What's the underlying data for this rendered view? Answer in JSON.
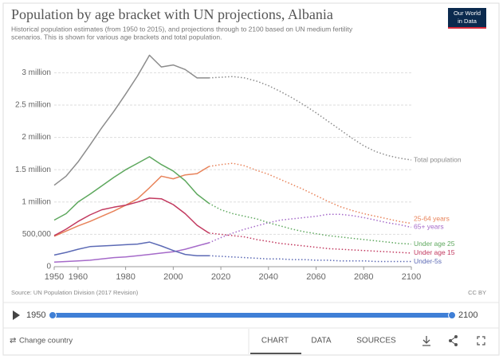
{
  "chart_data": {
    "type": "line",
    "title": "Population by age bracket with UN projections, Albania",
    "subtitle": [
      "Historical population estimates (from 1950 to 2015), and projections through to 2100 based on UN medium fertility",
      "scenarios. This is shown for various age brackets and total population."
    ],
    "logo": [
      "Our World",
      "in Data"
    ],
    "source": "Source: UN Population Division (2017 Revision)",
    "license": "CC BY",
    "x": [
      1950,
      1955,
      1960,
      1965,
      1970,
      1975,
      1980,
      1985,
      1990,
      1995,
      2000,
      2005,
      2010,
      2015,
      2020,
      2025,
      2030,
      2035,
      2040,
      2045,
      2050,
      2055,
      2060,
      2065,
      2070,
      2075,
      2080,
      2085,
      2090,
      2095,
      2100
    ],
    "xlim": [
      1950,
      2100
    ],
    "xticks": [
      1950,
      1960,
      1980,
      2000,
      2020,
      2040,
      2060,
      2080,
      2100
    ],
    "ylim": [
      0,
      3300000
    ],
    "yticks": [
      0,
      {
        "value": 500000,
        "label": "500,000"
      },
      {
        "value": 1000000,
        "label": "1 million"
      },
      {
        "value": 1500000,
        "label": "1.5 million"
      },
      {
        "value": 2000000,
        "label": "2 million"
      },
      {
        "value": 2500000,
        "label": "2.5 million"
      },
      {
        "value": 3000000,
        "label": "3 million"
      }
    ],
    "grid": true,
    "series": [
      {
        "name": "Total population",
        "color": "#8c8c8c",
        "values": [
          1260000,
          1400000,
          1620000,
          1880000,
          2150000,
          2400000,
          2670000,
          2950000,
          3270000,
          3090000,
          3120000,
          3050000,
          2920000,
          2920000,
          null,
          null,
          null,
          null,
          null,
          null,
          null,
          null,
          null,
          null,
          null,
          null,
          null,
          null,
          null,
          null,
          null
        ],
        "projection": [
          null,
          null,
          null,
          null,
          null,
          null,
          null,
          null,
          null,
          null,
          null,
          null,
          null,
          2920000,
          2930000,
          2940000,
          2920000,
          2870000,
          2800000,
          2710000,
          2610000,
          2500000,
          2380000,
          2250000,
          2120000,
          1990000,
          1870000,
          1780000,
          1720000,
          1680000,
          1650000
        ]
      },
      {
        "name": "25-64 years",
        "color": "#e8835a",
        "values": [
          470000,
          550000,
          630000,
          700000,
          780000,
          860000,
          950000,
          1050000,
          1220000,
          1400000,
          1360000,
          1420000,
          1440000,
          1550000,
          null,
          null,
          null,
          null,
          null,
          null,
          null,
          null,
          null,
          null,
          null,
          null,
          null,
          null,
          null,
          null,
          null
        ],
        "projection": [
          null,
          null,
          null,
          null,
          null,
          null,
          null,
          null,
          null,
          null,
          null,
          null,
          null,
          1550000,
          1580000,
          1600000,
          1560000,
          1490000,
          1430000,
          1350000,
          1270000,
          1190000,
          1100000,
          1010000,
          930000,
          870000,
          820000,
          780000,
          740000,
          700000,
          670000
        ]
      },
      {
        "name": "65+ years",
        "color": "#a56ac9",
        "values": [
          70000,
          80000,
          90000,
          100000,
          120000,
          140000,
          150000,
          170000,
          190000,
          210000,
          230000,
          270000,
          320000,
          370000,
          null,
          null,
          null,
          null,
          null,
          null,
          null,
          null,
          null,
          null,
          null,
          null,
          null,
          null,
          null,
          null,
          null
        ],
        "projection": [
          null,
          null,
          null,
          null,
          null,
          null,
          null,
          null,
          null,
          null,
          null,
          null,
          null,
          370000,
          450000,
          520000,
          580000,
          630000,
          680000,
          720000,
          740000,
          760000,
          780000,
          810000,
          810000,
          790000,
          760000,
          720000,
          680000,
          650000,
          610000
        ]
      },
      {
        "name": "Under age 25",
        "color": "#5ea85e",
        "values": [
          720000,
          820000,
          1000000,
          1120000,
          1250000,
          1380000,
          1500000,
          1600000,
          1700000,
          1580000,
          1480000,
          1330000,
          1120000,
          980000,
          null,
          null,
          null,
          null,
          null,
          null,
          null,
          null,
          null,
          null,
          null,
          null,
          null,
          null,
          null,
          null,
          null
        ],
        "projection": [
          null,
          null,
          null,
          null,
          null,
          null,
          null,
          null,
          null,
          null,
          null,
          null,
          null,
          980000,
          880000,
          820000,
          780000,
          740000,
          680000,
          630000,
          580000,
          540000,
          510000,
          480000,
          460000,
          440000,
          420000,
          400000,
          380000,
          360000,
          350000
        ]
      },
      {
        "name": "Under age 15",
        "color": "#c2395f",
        "values": [
          480000,
          580000,
          700000,
          800000,
          880000,
          920000,
          950000,
          1000000,
          1060000,
          1050000,
          960000,
          820000,
          640000,
          520000,
          null,
          null,
          null,
          null,
          null,
          null,
          null,
          null,
          null,
          null,
          null,
          null,
          null,
          null,
          null,
          null,
          null
        ],
        "projection": [
          null,
          null,
          null,
          null,
          null,
          null,
          null,
          null,
          null,
          null,
          null,
          null,
          null,
          520000,
          500000,
          480000,
          460000,
          420000,
          390000,
          360000,
          340000,
          320000,
          300000,
          280000,
          270000,
          260000,
          250000,
          240000,
          230000,
          220000,
          210000
        ]
      },
      {
        "name": "Under-5s",
        "color": "#5c6ab5",
        "values": [
          180000,
          220000,
          270000,
          310000,
          320000,
          330000,
          340000,
          350000,
          380000,
          320000,
          250000,
          190000,
          170000,
          170000,
          null,
          null,
          null,
          null,
          null,
          null,
          null,
          null,
          null,
          null,
          null,
          null,
          null,
          null,
          null,
          null,
          null
        ],
        "projection": [
          null,
          null,
          null,
          null,
          null,
          null,
          null,
          null,
          null,
          null,
          null,
          null,
          null,
          170000,
          160000,
          150000,
          140000,
          130000,
          120000,
          120000,
          110000,
          110000,
          100000,
          100000,
          90000,
          90000,
          90000,
          80000,
          80000,
          80000,
          80000
        ]
      }
    ],
    "controls": {
      "change": "Change country",
      "tabs": [
        "CHART",
        "DATA",
        "SOURCES"
      ]
    }
  }
}
